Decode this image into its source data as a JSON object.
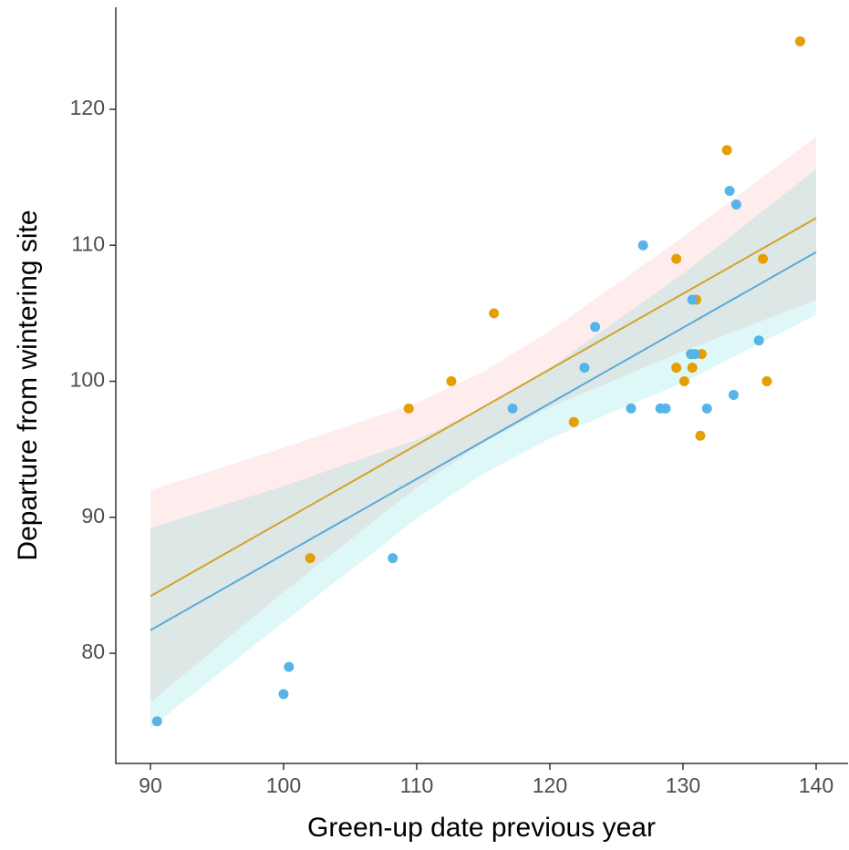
{
  "chart_data": {
    "type": "scatter",
    "x_label": "Green-up date previous year",
    "y_label": "Departure from wintering site",
    "xlim": [
      87.4,
      142.4
    ],
    "ylim": [
      71.9,
      127.5
    ],
    "xticks": [
      90,
      100,
      110,
      120,
      130,
      140
    ],
    "yticks": [
      80,
      90,
      100,
      110,
      120
    ],
    "series": [
      {
        "color": "#E69F00",
        "line_color": "#D4A22A",
        "band_color": "#F8766D",
        "x": [
          138.8,
          133.3,
          129.5,
          136,
          131,
          115.8,
          112.6,
          109.4,
          121.8,
          130.6,
          131.4,
          129.5,
          130.7,
          130.1,
          136.3,
          131.3,
          102
        ],
        "values": [
          125,
          117,
          109,
          109,
          106,
          105,
          100,
          98,
          97,
          102,
          102,
          101,
          101,
          100,
          100,
          96,
          87
        ],
        "fit_x": [
          90,
          140
        ],
        "fit_values": [
          84.2,
          112
        ],
        "band_x": [
          90,
          100,
          110,
          115,
          120,
          130,
          140
        ],
        "band_upper": [
          92.0,
          95.1,
          98.4,
          100.7,
          103.7,
          110.6,
          118.0
        ],
        "band_lower": [
          76.4,
          84.5,
          92.2,
          95.5,
          98.1,
          102.2,
          106.0
        ]
      },
      {
        "color": "#56B4E9",
        "line_color": "#5AAAD8",
        "band_color": "#00BFC4",
        "x": [
          90.5,
          100,
          100.4,
          108.2,
          117.2,
          122.6,
          123.4,
          127,
          126.1,
          128.3,
          128.7,
          130.7,
          130.6,
          130.9,
          131.8,
          133.8,
          135.7,
          133.5,
          134
        ],
        "values": [
          75,
          77,
          79,
          87,
          98,
          101,
          104,
          110,
          98,
          98,
          98,
          106,
          102,
          102,
          98,
          99,
          103,
          114,
          113
        ],
        "fit_x": [
          90,
          140
        ],
        "fit_values": [
          81.7,
          109.5
        ],
        "band_x": [
          90,
          100,
          110,
          115,
          120,
          130,
          140
        ],
        "band_upper": [
          89.2,
          92.3,
          95.7,
          98.0,
          101.0,
          107.9,
          115.6
        ],
        "band_lower": [
          74.5,
          82.3,
          89.9,
          93.2,
          95.8,
          99.9,
          104.9
        ]
      }
    ]
  }
}
